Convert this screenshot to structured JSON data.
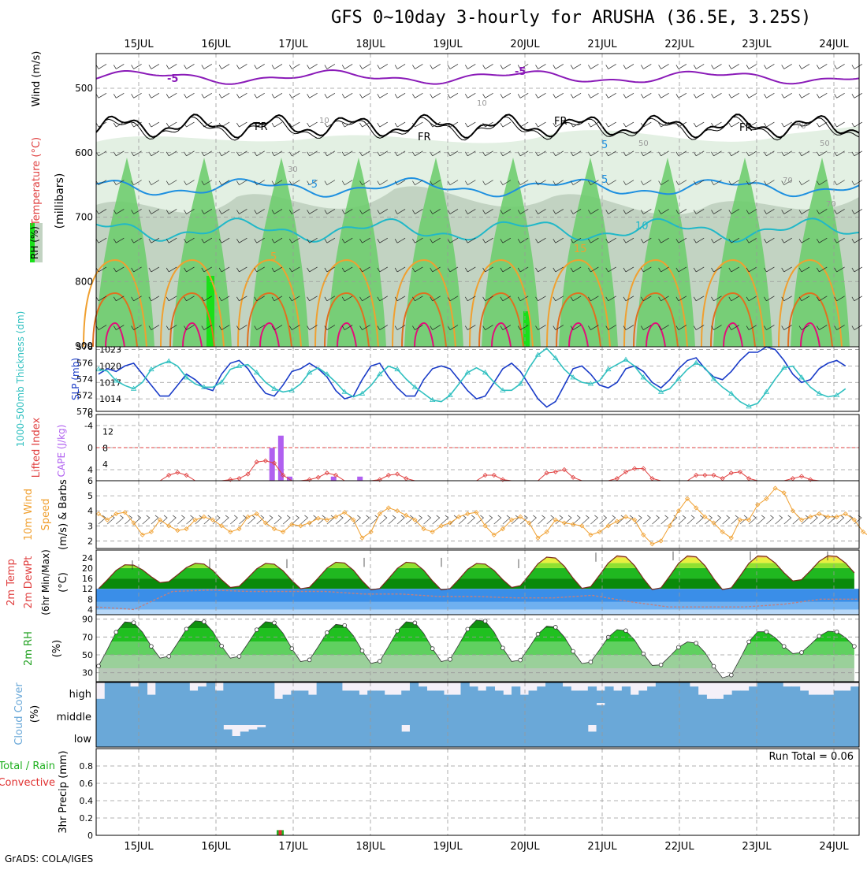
{
  "title": "GFS 0~10day 3-hourly for ARUSHA (36.5E, 3.25S)",
  "footer": "GrADS: COLA/IGES",
  "colors": {
    "rh_light": "#e3f0e3",
    "rh_mid": "#c2d3c2",
    "rh_green": "#6fcd6f",
    "rh_bright": "#19e019",
    "temp_neg5": "#8a1ab8",
    "temp_fr": "#000000",
    "temp_5": "#1e90e0",
    "temp_10": "#20b8c8",
    "temp_15": "#f0a030",
    "temp_20": "#e07020",
    "temp_25": "#e0107a",
    "slp": "#1a3cc8",
    "thickness": "#30c0c0",
    "lifted": "#e04040",
    "cape": "#b060f0",
    "wind10": "#f0a030",
    "cloud": "#6aa8d8",
    "cloud_bg": "#f4f0f8",
    "precip_total": "#20b020",
    "precip_conv": "#e03030"
  },
  "chart_data": [
    {
      "panel": "upper_air",
      "type": "heatmap",
      "x": [
        "15JUL",
        "16JUL",
        "17JUL",
        "18JUL",
        "19JUL",
        "20JUL",
        "21JUL",
        "22JUL",
        "23JUL",
        "24JUL"
      ],
      "ylabel": "(millibars)",
      "y_ticks": [
        500,
        600,
        700,
        800,
        900
      ],
      "ylim": [
        900,
        450
      ],
      "legend_left": [
        "RH (%)",
        "Temperature (°C)",
        "Wind (m/s)"
      ],
      "contour_labels": [
        "-5",
        "-5",
        "FR",
        "FR",
        "FR",
        "FR",
        "5",
        "-5",
        "5",
        "10",
        "5",
        "15",
        "10",
        "10",
        "50",
        "70",
        "30",
        "50",
        "70",
        "70"
      ]
    },
    {
      "panel": "slp_thickness",
      "type": "line",
      "ylabel_left": "1000-500mb Thickness (dm)",
      "ylabel_right": "SLP (mb)",
      "left_ticks": [
        570,
        572,
        574,
        576,
        578
      ],
      "left_lim": [
        570,
        578
      ],
      "right_ticks": [
        1014,
        1017,
        1020,
        1023
      ],
      "right_lim": [
        1012,
        1024
      ],
      "series": [
        {
          "name": "SLP (mb)",
          "axis": "right",
          "values": [
            1018.5,
            1019.5,
            1019,
            1020,
            1020.5,
            1018.5,
            1016.5,
            1014.5,
            1014.5,
            1016.5,
            1018.5,
            1017.5,
            1016,
            1015.5,
            1018.5,
            1020.5,
            1021,
            1019.5,
            1017,
            1015,
            1014.5,
            1016.5,
            1019,
            1019.5,
            1020.5,
            1019.5,
            1018,
            1015.5,
            1014,
            1014.5,
            1017.5,
            1020,
            1020.5,
            1018,
            1016,
            1014.5,
            1014.5,
            1017.5,
            1019.5,
            1020,
            1019.5,
            1017.5,
            1015.5,
            1014,
            1014.5,
            1017,
            1019.5,
            1020.5,
            1019,
            1016.5,
            1014,
            1012.5,
            1013.5,
            1016.5,
            1019.5,
            1020,
            1018.5,
            1016.5,
            1016,
            1017,
            1019.5,
            1020,
            1019,
            1017,
            1016,
            1017.5,
            1019.5,
            1021,
            1021.5,
            1019.5,
            1018,
            1017.5,
            1019,
            1021,
            1022.5,
            1022.5,
            1023.5,
            1023,
            1021,
            1018.5,
            1017,
            1017.5,
            1019.5,
            1020.5,
            1021,
            1020
          ]
        },
        {
          "name": "1000-500mb Thickness (dm)",
          "axis": "left",
          "values": [
            575.2,
            575,
            573.8,
            573.2,
            572.8,
            573.6,
            575.2,
            575.8,
            576.2,
            575.6,
            574.2,
            573.4,
            573,
            573,
            573.6,
            575.2,
            575.6,
            575.8,
            574.8,
            573.6,
            572.8,
            572.4,
            572.6,
            573.4,
            574.8,
            575.4,
            574.6,
            573.6,
            572.4,
            571.8,
            572.2,
            573.2,
            574.6,
            575.6,
            575.2,
            574,
            573,
            572.2,
            571.4,
            571.2,
            572,
            573.4,
            574.8,
            575.4,
            574.8,
            573.6,
            572.6,
            572.6,
            573.4,
            575.4,
            577,
            577.8,
            576.6,
            575.2,
            574.2,
            573.6,
            573.4,
            573.8,
            575.2,
            575.8,
            576.4,
            575.6,
            574.2,
            573.2,
            572.4,
            572.8,
            574,
            575.2,
            576,
            575.4,
            574,
            573,
            572.2,
            571.2,
            570.6,
            571,
            572.4,
            574,
            575.4,
            575.6,
            574.2,
            573,
            572.2,
            571.8,
            572,
            572.8
          ]
        }
      ]
    },
    {
      "panel": "lifted_cape",
      "type": "bar",
      "ylabel_left": "Lifted Index",
      "ylabel_right": "CAPE (J/kg)",
      "left_ticks": [
        -4,
        0,
        4
      ],
      "left_tick_labels": [
        "-4",
        "0",
        "4"
      ],
      "left_edge_labels": [
        "6",
        "6"
      ],
      "right_ticks": [
        4,
        8,
        12
      ],
      "right_lim": [
        0,
        16
      ],
      "series": [
        {
          "name": "Lifted Index",
          "type": "line",
          "values": [
            6.2,
            6.4,
            6.6,
            6.6,
            6.8,
            6.6,
            6.8,
            6,
            5,
            4.5,
            5,
            6,
            6.6,
            6.6,
            6,
            5.8,
            5.6,
            4.8,
            2.6,
            2.4,
            2.8,
            5,
            6,
            6.2,
            5.8,
            5.4,
            4.6,
            5,
            6,
            6.4,
            6.6,
            6.6,
            5.8,
            5,
            4.8,
            5.6,
            6.6,
            6.6,
            6.6,
            6.6,
            6.6,
            6.6,
            6.6,
            6,
            5,
            5,
            5.8,
            6.6,
            6.6,
            6.6,
            6,
            4.6,
            4.4,
            4,
            5.4,
            6.4,
            6.6,
            6.6,
            6.6,
            5.6,
            4.4,
            3.8,
            3.8,
            5.6,
            6.4,
            6.6,
            6.6,
            6,
            5,
            5,
            5,
            5.6,
            4.6,
            4.4,
            5.6,
            6.6,
            6.6,
            6.6,
            6.2,
            5.6,
            5.2,
            5.8,
            6.6,
            6.6,
            6.6,
            6.6
          ]
        },
        {
          "name": "CAPE (J/kg)",
          "type": "bar",
          "x_index": [
            18,
            19,
            20,
            25,
            28
          ],
          "values": [
            8,
            11,
            1,
            1,
            1
          ]
        }
      ],
      "reference_line": 0
    },
    {
      "panel": "wind10m",
      "type": "line",
      "ylabel": "10m Wind Speed (m/s) & Barbs",
      "y_ticks": [
        2,
        3,
        4,
        5
      ],
      "ylim": [
        1.5,
        6
      ],
      "series": [
        {
          "name": "10m Wind Speed",
          "values": [
            3.8,
            3.4,
            3.8,
            3.9,
            3.2,
            2.4,
            2.6,
            3.4,
            3,
            2.7,
            2.8,
            3.4,
            3.6,
            3.4,
            3,
            2.6,
            2.8,
            3.6,
            3.8,
            3.2,
            2.8,
            2.6,
            3.1,
            3,
            3.2,
            3.5,
            3.4,
            3.6,
            3.9,
            3.4,
            2.2,
            2.6,
            3.8,
            4.2,
            4,
            3.7,
            3.4,
            2.8,
            2.6,
            3,
            3.2,
            3.6,
            3.8,
            3.9,
            3,
            2.4,
            2.8,
            3.4,
            3.6,
            3.2,
            2.2,
            2.6,
            3.4,
            3.2,
            3.1,
            3,
            2.4,
            2.6,
            3,
            3.3,
            3.6,
            3.4,
            2.4,
            1.8,
            2,
            3,
            4,
            4.8,
            4.2,
            3.6,
            3.2,
            2.6,
            2.2,
            3.4,
            3.4,
            4.4,
            4.8,
            5.5,
            5.2,
            4,
            3.4,
            3.6,
            3.8,
            3.6,
            3.6,
            3.8,
            3.4,
            2.6,
            2.2,
            2.8
          ]
        }
      ]
    },
    {
      "panel": "temp2m",
      "type": "area",
      "ylabel": "2m Temp 2m DewPt (6hr Min/Max) (°C)",
      "y_ticks": [
        4,
        8,
        12,
        16,
        20,
        24
      ],
      "ylim": [
        2,
        27
      ],
      "series": [
        {
          "name": "2m Temp",
          "peaks": [
            21.5,
            22,
            22,
            22.5,
            22.5,
            22,
            24.5,
            25,
            25,
            25
          ],
          "minimums": [
            11,
            14,
            12,
            11.5,
            11,
            11,
            12,
            11.5,
            11,
            11,
            14.5
          ]
        },
        {
          "name": "2m DewPt",
          "values": [
            5,
            4,
            11,
            11.5,
            11,
            11,
            11,
            10,
            10,
            9,
            9,
            8.5,
            8.5,
            9.5,
            7,
            5,
            5,
            5,
            6,
            8,
            8
          ]
        }
      ]
    },
    {
      "panel": "rh2m",
      "type": "area",
      "ylabel": "2m RH (%)",
      "y_ticks": [
        30,
        50,
        70,
        90
      ],
      "ylim": [
        20,
        95
      ],
      "series": [
        {
          "name": "2m RH",
          "peaks": [
            88,
            89,
            88,
            85,
            88,
            90,
            83,
            79,
            65,
            77
          ],
          "minimums": [
            32,
            44,
            44,
            40,
            38,
            40,
            40,
            38,
            36,
            22,
            50
          ]
        }
      ]
    },
    {
      "panel": "cloud_cover",
      "type": "area",
      "ylabel": "Cloud Cover (%)",
      "levels": [
        "high",
        "middle",
        "low"
      ],
      "series": [
        {
          "name": "high",
          "values": [
            20,
            100,
            100,
            100,
            80,
            100,
            40,
            100,
            100,
            100,
            100,
            60,
            80,
            100,
            60,
            100,
            100,
            100,
            100,
            100,
            100,
            20,
            40,
            60,
            60,
            40,
            100,
            100,
            100,
            60,
            60,
            40,
            60,
            60,
            40,
            40,
            60,
            100,
            80,
            60,
            60,
            40,
            40,
            100,
            80,
            60,
            80,
            60,
            40,
            80,
            40,
            60,
            80,
            100,
            100,
            80,
            60,
            60,
            80,
            60,
            80,
            60,
            80,
            40,
            60,
            80,
            100,
            100,
            100,
            100,
            80,
            40,
            20,
            20,
            40,
            60,
            60,
            80,
            100,
            100,
            100,
            80,
            80,
            60,
            40,
            40,
            40,
            60,
            60,
            80
          ]
        },
        {
          "name": "middle",
          "values": [
            100,
            100,
            100,
            100,
            100,
            100,
            100,
            100,
            100,
            100,
            100,
            100,
            100,
            100,
            100,
            100,
            100,
            100,
            100,
            100,
            100,
            100,
            100,
            100,
            100,
            100,
            100,
            100,
            100,
            100,
            100,
            100,
            100,
            100,
            100,
            100,
            100,
            100,
            100,
            100,
            100,
            100,
            100,
            100,
            100,
            100,
            100,
            100,
            100,
            100,
            100,
            100,
            100,
            100,
            100,
            100,
            100,
            100,
            100,
            90,
            100,
            100,
            100,
            100,
            100,
            100,
            100,
            100,
            100,
            100,
            100,
            100,
            100,
            100,
            100,
            100,
            100,
            100,
            100,
            100,
            100,
            100,
            100,
            100,
            100,
            100,
            100,
            100,
            100,
            100
          ]
        },
        {
          "name": "low",
          "values": [
            100,
            100,
            100,
            100,
            100,
            100,
            100,
            100,
            100,
            100,
            100,
            100,
            100,
            100,
            100,
            80,
            50,
            70,
            80,
            90,
            100,
            100,
            100,
            100,
            100,
            100,
            100,
            100,
            100,
            100,
            100,
            100,
            100,
            100,
            100,
            100,
            70,
            100,
            100,
            100,
            100,
            100,
            100,
            100,
            100,
            100,
            100,
            100,
            100,
            100,
            100,
            100,
            100,
            100,
            100,
            100,
            100,
            100,
            70,
            100,
            100,
            100,
            100,
            100,
            100,
            100,
            100,
            100,
            100,
            100,
            100,
            100,
            100,
            100,
            100,
            100,
            100,
            100,
            100,
            100,
            100,
            100,
            100,
            100,
            100,
            100,
            100,
            100,
            100,
            100
          ]
        }
      ]
    },
    {
      "panel": "precip",
      "type": "bar",
      "ylabel": "3hr Precip (mm)",
      "legend_left": [
        "Total / Rain",
        "Convective"
      ],
      "y_ticks": [
        0,
        0.2,
        0.4,
        0.6,
        0.8
      ],
      "y_tick_labels": [
        "0",
        "0.2",
        "0.4",
        "0.6",
        "0.8"
      ],
      "ylim": [
        0,
        1
      ],
      "annotation": "Run Total = 0.06",
      "series": [
        {
          "name": "Total / Rain",
          "x_index": [
            20
          ],
          "values": [
            0.06
          ]
        },
        {
          "name": "Convective",
          "x_index": [
            20
          ],
          "values": [
            0.06
          ]
        }
      ]
    }
  ]
}
